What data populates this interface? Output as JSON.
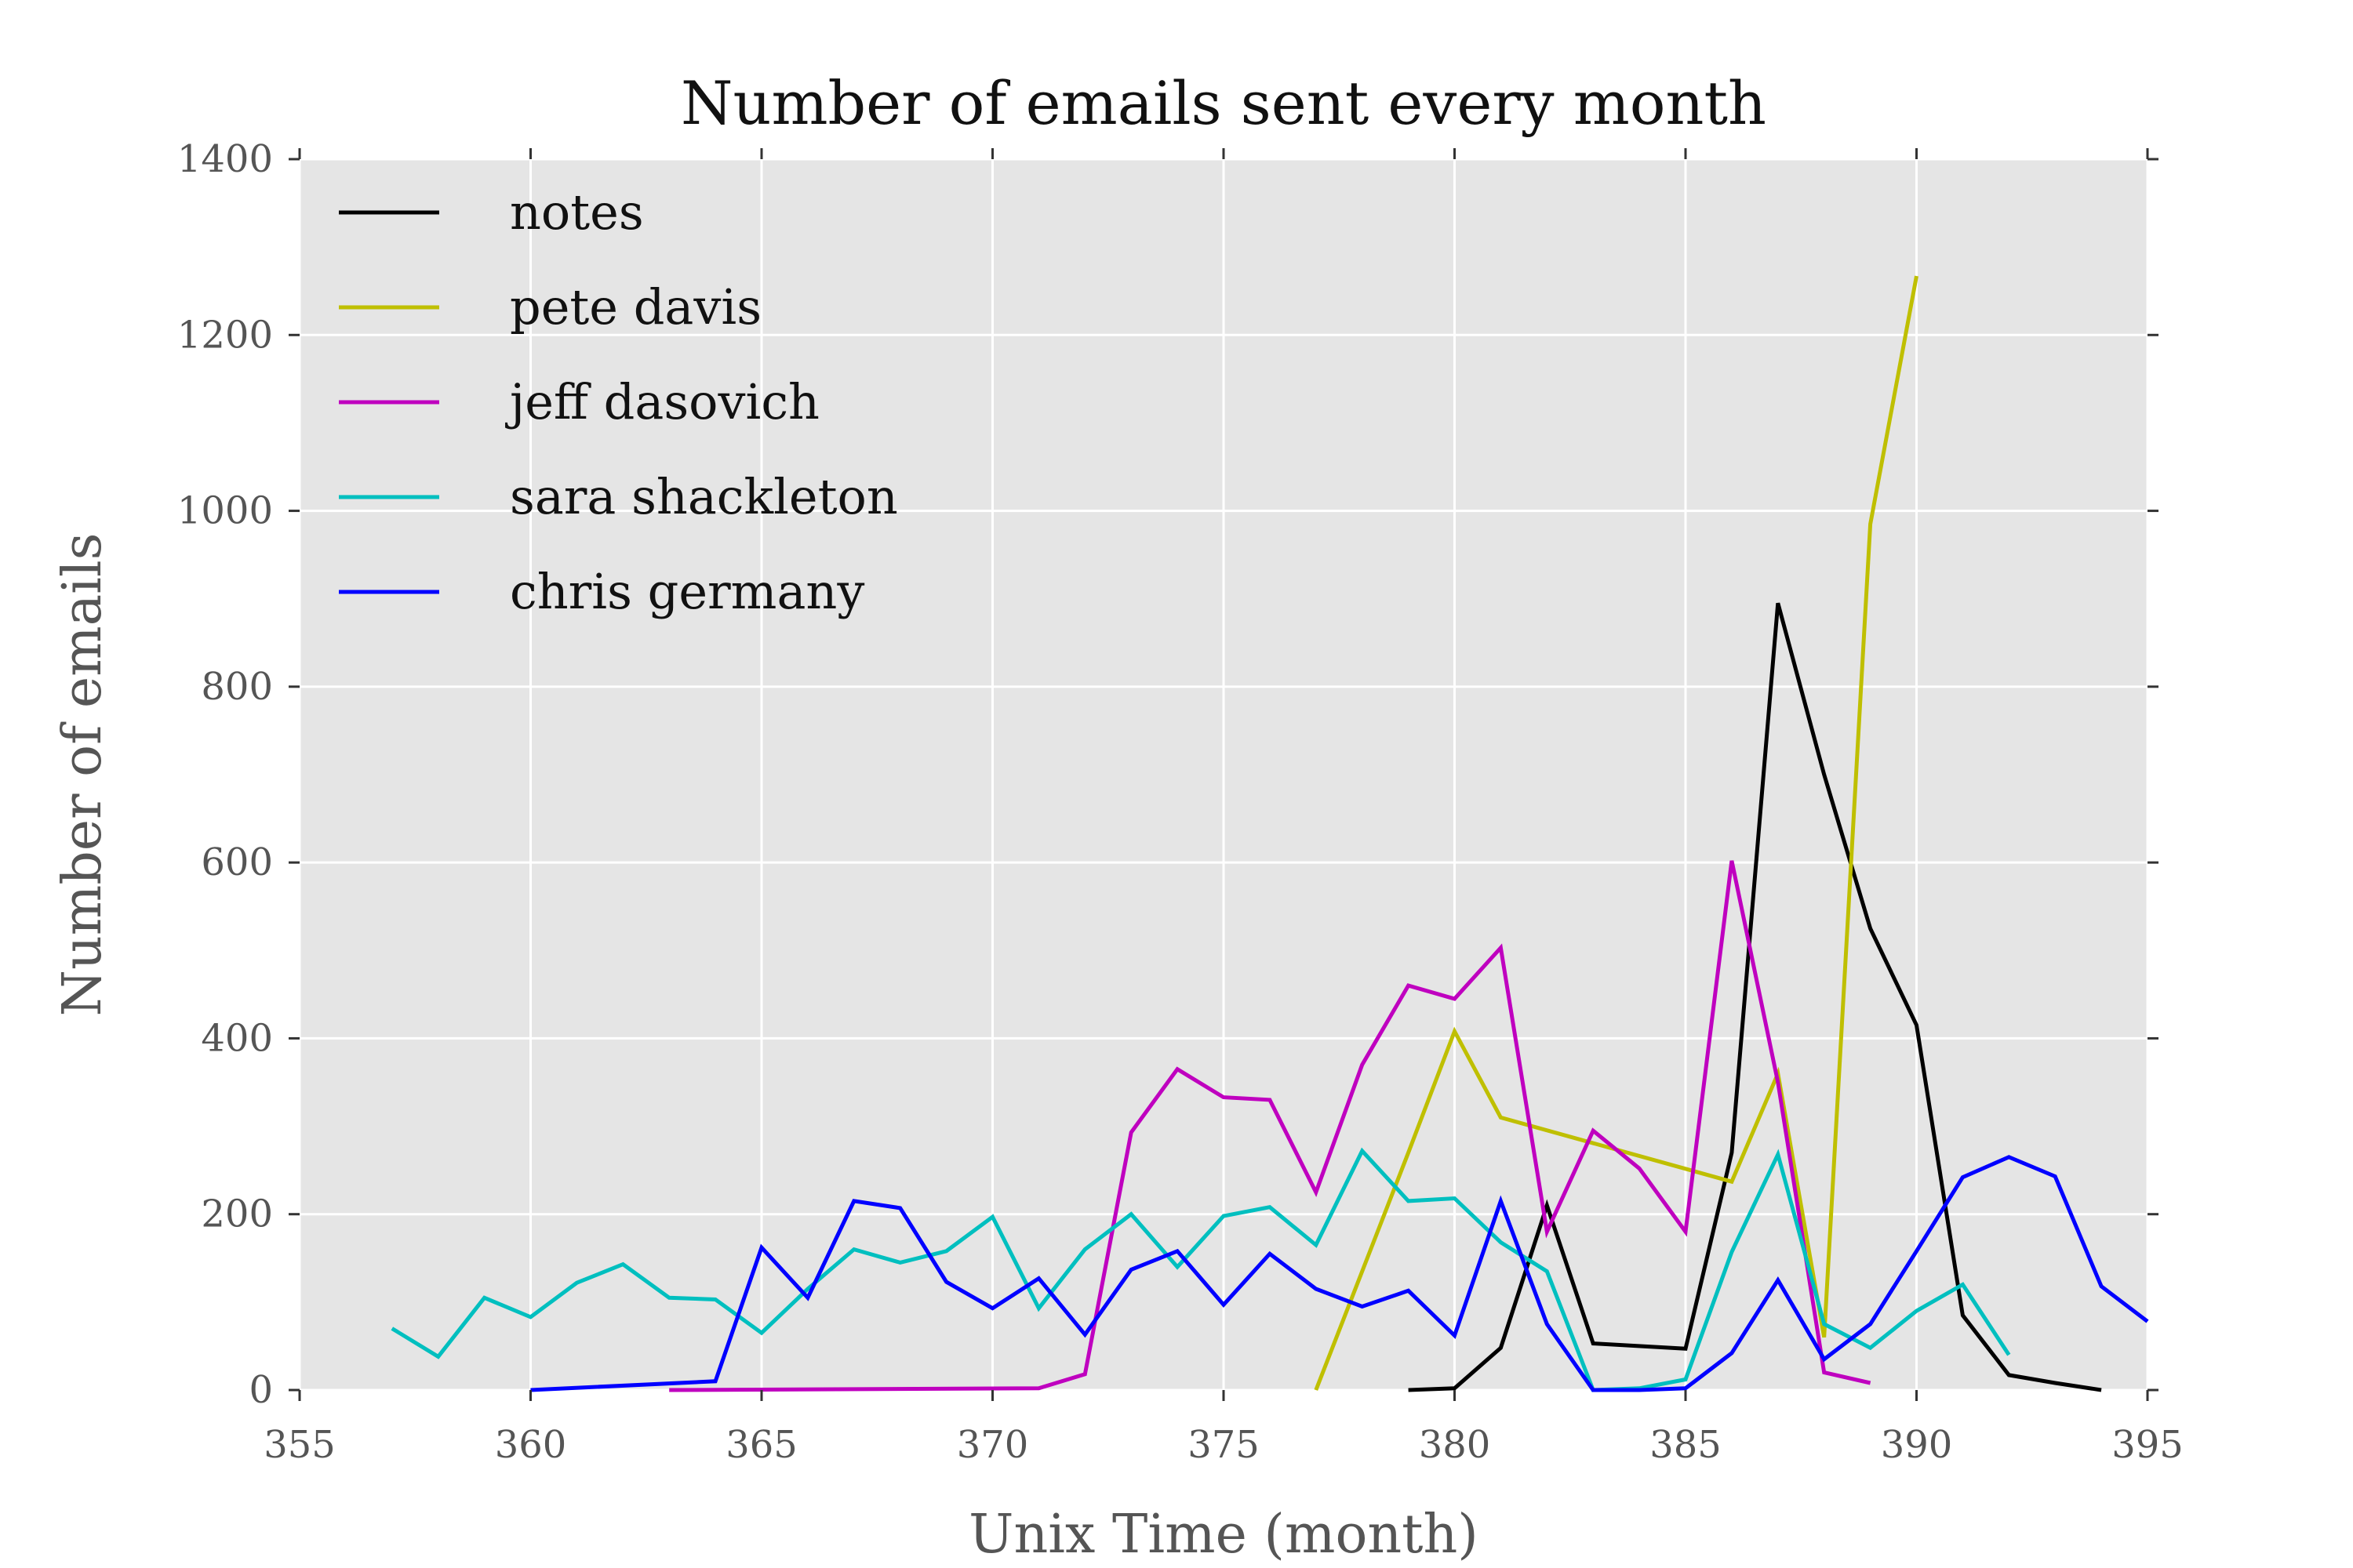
{
  "chart_data": {
    "type": "line",
    "title": "Number of emails sent every month",
    "xlabel": "Unix Time (month)",
    "ylabel": "Number of emails",
    "xlim": [
      355,
      395
    ],
    "ylim": [
      0,
      1400
    ],
    "xticks": [
      355,
      360,
      365,
      370,
      375,
      380,
      385,
      390,
      395
    ],
    "yticks": [
      0,
      200,
      400,
      600,
      800,
      1000,
      1200,
      1400
    ],
    "x_tick_labels": [
      "355",
      "360",
      "365",
      "370",
      "375",
      "380",
      "385",
      "390",
      "395"
    ],
    "y_tick_labels": [
      "0",
      "200",
      "400",
      "600",
      "800",
      "1000",
      "1200",
      "1400"
    ],
    "grid": true,
    "legend_position": "top-left",
    "series": [
      {
        "name": "notes",
        "color": "#000000",
        "x": [
          379,
          380,
          381,
          382,
          383,
          385,
          386,
          387,
          388,
          389,
          390,
          391,
          392,
          393,
          394
        ],
        "y": [
          0,
          2,
          48,
          210,
          53,
          47,
          270,
          895,
          700,
          525,
          415,
          85,
          17,
          8,
          0
        ]
      },
      {
        "name": "pete davis",
        "color": "#bfbf00",
        "x": [
          377,
          378,
          379,
          380,
          381,
          386,
          387,
          388,
          389,
          390
        ],
        "y": [
          0,
          135,
          270,
          408,
          310,
          237,
          360,
          60,
          985,
          1267
        ]
      },
      {
        "name": "jeff dasovich",
        "color": "#bf00bf",
        "x": [
          363,
          371,
          372,
          373,
          374,
          375,
          376,
          377,
          378,
          379,
          380,
          381,
          382,
          383,
          384,
          385,
          386,
          387,
          388,
          389
        ],
        "y": [
          0,
          2,
          18,
          293,
          365,
          333,
          330,
          225,
          370,
          460,
          445,
          503,
          180,
          295,
          252,
          180,
          602,
          350,
          20,
          8
        ]
      },
      {
        "name": "sara shackleton",
        "color": "#00bfbf",
        "x": [
          357,
          358,
          359,
          360,
          361,
          362,
          363,
          364,
          365,
          366,
          367,
          368,
          369,
          370,
          371,
          372,
          373,
          374,
          375,
          376,
          377,
          378,
          379,
          380,
          381,
          382,
          383,
          384,
          385,
          386,
          387,
          388,
          389,
          390,
          391,
          392
        ],
        "y": [
          70,
          38,
          105,
          83,
          122,
          143,
          105,
          103,
          65,
          115,
          160,
          145,
          158,
          197,
          93,
          160,
          200,
          140,
          198,
          208,
          165,
          272,
          215,
          218,
          168,
          135,
          0,
          2,
          12,
          157,
          268,
          75,
          48,
          90,
          120,
          40
        ]
      },
      {
        "name": "chris germany",
        "color": "#0000ff",
        "x": [
          360,
          364,
          365,
          366,
          367,
          368,
          369,
          370,
          371,
          372,
          373,
          374,
          375,
          376,
          377,
          378,
          379,
          380,
          381,
          382,
          383,
          384,
          385,
          386,
          387,
          388,
          389,
          390,
          391,
          392,
          393,
          394,
          395
        ],
        "y": [
          0,
          10,
          162,
          105,
          215,
          207,
          123,
          93,
          127,
          63,
          137,
          158,
          97,
          155,
          115,
          95,
          113,
          62,
          215,
          75,
          0,
          0,
          2,
          42,
          125,
          35,
          75,
          158,
          242,
          265,
          243,
          118,
          78
        ]
      }
    ]
  }
}
